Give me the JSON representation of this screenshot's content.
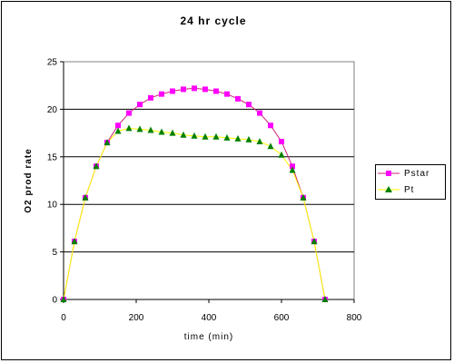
{
  "chart_data": {
    "type": "line",
    "title": "24 hr cycle",
    "xlabel": "time (min)",
    "ylabel": "O2 prod rate",
    "xlim": [
      0,
      800
    ],
    "ylim": [
      0,
      25
    ],
    "x_ticks": [
      "0",
      "200",
      "400",
      "600",
      "800"
    ],
    "y_ticks": [
      "0",
      "5",
      "10",
      "15",
      "20",
      "25"
    ],
    "grid": "horizontal",
    "plot_background": "#ffffff",
    "legend_position": "right",
    "x": [
      0,
      30,
      60,
      90,
      120,
      150,
      180,
      210,
      240,
      270,
      300,
      330,
      360,
      390,
      420,
      450,
      480,
      510,
      540,
      570,
      600,
      630,
      660,
      690,
      720
    ],
    "series": [
      {
        "name": "Pstar",
        "color": "#ff00ff",
        "line_color": "#cc2277",
        "marker": "square",
        "values": [
          0,
          6.1,
          10.7,
          14.0,
          16.5,
          18.3,
          19.6,
          20.5,
          21.2,
          21.6,
          21.9,
          22.1,
          22.2,
          22.1,
          21.9,
          21.6,
          21.1,
          20.5,
          19.6,
          18.3,
          16.6,
          14.0,
          10.7,
          6.1,
          0
        ]
      },
      {
        "name": "Pt",
        "color": "#008000",
        "line_color": "#ffff00",
        "marker": "triangle",
        "values": [
          0,
          6.1,
          10.7,
          14.0,
          16.5,
          17.7,
          18.0,
          17.9,
          17.8,
          17.6,
          17.5,
          17.3,
          17.2,
          17.1,
          17.1,
          17.0,
          16.9,
          16.8,
          16.6,
          16.1,
          15.2,
          13.6,
          10.7,
          6.1,
          0
        ]
      }
    ]
  }
}
